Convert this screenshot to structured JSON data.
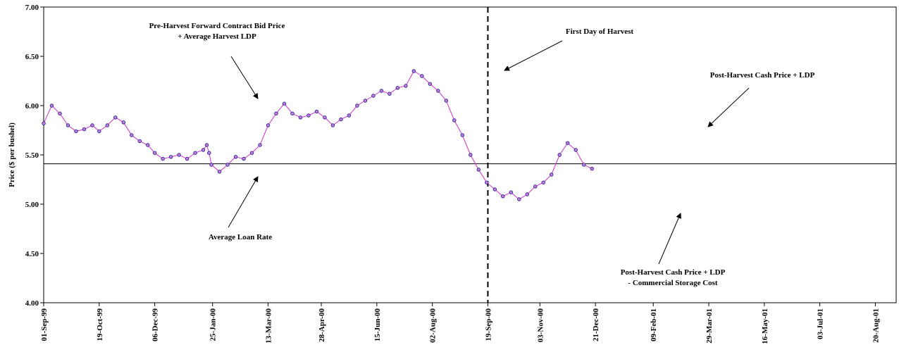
{
  "chart_data": {
    "type": "line",
    "ylabel": "Price ($ per bushel)",
    "ylim": [
      4.0,
      7.0
    ],
    "yticks": [
      "4.00",
      "4.50",
      "5.00",
      "5.50",
      "6.00",
      "6.50",
      "7.00"
    ],
    "xlim": [
      "1999-09-01",
      "2001-09-07"
    ],
    "xtick_labels": [
      "01-Sep-99",
      "19-Oct-99",
      "06-Dec-99",
      "25-Jan-00",
      "13-Mar-00",
      "28-Apr-00",
      "15-Jun-00",
      "02-Aug-00",
      "19-Sep-00",
      "03-Nov-00",
      "21-Dec-00",
      "09-Feb-01",
      "29-Mar-01",
      "16-May-01",
      "03-Jul-01",
      "20-Aug-01"
    ],
    "xtick_dates": [
      "1999-09-01",
      "1999-10-19",
      "1999-12-06",
      "2000-01-25",
      "2000-03-13",
      "2000-04-28",
      "2000-06-15",
      "2000-08-02",
      "2000-09-19",
      "2000-11-03",
      "2000-12-21",
      "2001-02-09",
      "2001-03-29",
      "2001-05-16",
      "2001-07-03",
      "2001-08-20"
    ],
    "grid": false,
    "reference_lines": [
      {
        "orientation": "horizontal",
        "value": 5.41,
        "style": "solid",
        "color": "#000000"
      },
      {
        "orientation": "vertical",
        "date": "2000-09-19",
        "style": "dashed",
        "color": "#000000"
      }
    ],
    "series": [
      {
        "marker": "circle",
        "color": "#c07ce0",
        "marker_edge": "#1a1a80",
        "line_color": "#cc33cc",
        "points": [
          [
            "1999-09-01",
            5.82
          ],
          [
            "1999-09-08",
            6.0
          ],
          [
            "1999-09-15",
            5.92
          ],
          [
            "1999-09-22",
            5.8
          ],
          [
            "1999-09-29",
            5.74
          ],
          [
            "1999-10-06",
            5.76
          ],
          [
            "1999-10-13",
            5.8
          ],
          [
            "1999-10-19",
            5.74
          ],
          [
            "1999-10-26",
            5.8
          ],
          [
            "1999-11-02",
            5.88
          ],
          [
            "1999-11-09",
            5.83
          ],
          [
            "1999-11-16",
            5.7
          ],
          [
            "1999-11-23",
            5.64
          ],
          [
            "1999-11-30",
            5.6
          ],
          [
            "1999-12-06",
            5.52
          ],
          [
            "1999-12-13",
            5.46
          ],
          [
            "1999-12-20",
            5.48
          ],
          [
            "1999-12-27",
            5.5
          ],
          [
            "2000-01-03",
            5.46
          ],
          [
            "2000-01-10",
            5.52
          ],
          [
            "2000-01-17",
            5.55
          ],
          [
            "2000-01-20",
            5.6
          ],
          [
            "2000-01-22",
            5.52
          ],
          [
            "2000-01-24",
            5.4
          ],
          [
            "2000-01-31",
            5.33
          ],
          [
            "2000-02-07",
            5.4
          ],
          [
            "2000-02-14",
            5.48
          ],
          [
            "2000-02-21",
            5.46
          ],
          [
            "2000-02-28",
            5.52
          ],
          [
            "2000-03-06",
            5.6
          ],
          [
            "2000-03-13",
            5.8
          ],
          [
            "2000-03-20",
            5.92
          ],
          [
            "2000-03-27",
            6.02
          ],
          [
            "2000-04-03",
            5.92
          ],
          [
            "2000-04-10",
            5.88
          ],
          [
            "2000-04-17",
            5.9
          ],
          [
            "2000-04-24",
            5.94
          ],
          [
            "2000-05-01",
            5.88
          ],
          [
            "2000-05-08",
            5.8
          ],
          [
            "2000-05-15",
            5.86
          ],
          [
            "2000-05-22",
            5.9
          ],
          [
            "2000-05-29",
            6.0
          ],
          [
            "2000-06-05",
            6.05
          ],
          [
            "2000-06-12",
            6.1
          ],
          [
            "2000-06-19",
            6.15
          ],
          [
            "2000-06-26",
            6.12
          ],
          [
            "2000-07-03",
            6.18
          ],
          [
            "2000-07-10",
            6.2
          ],
          [
            "2000-07-17",
            6.35
          ],
          [
            "2000-07-24",
            6.3
          ],
          [
            "2000-07-31",
            6.22
          ],
          [
            "2000-08-07",
            6.15
          ],
          [
            "2000-08-14",
            6.05
          ],
          [
            "2000-08-21",
            5.85
          ],
          [
            "2000-08-28",
            5.7
          ],
          [
            "2000-09-04",
            5.5
          ],
          [
            "2000-09-11",
            5.35
          ],
          [
            "2000-09-18",
            5.22
          ],
          [
            "2000-09-25",
            5.15
          ],
          [
            "2000-10-02",
            5.08
          ],
          [
            "2000-10-09",
            5.12
          ],
          [
            "2000-10-16",
            5.05
          ],
          [
            "2000-10-23",
            5.1
          ],
          [
            "2000-10-30",
            5.18
          ],
          [
            "2000-11-06",
            5.22
          ],
          [
            "2000-11-13",
            5.3
          ],
          [
            "2000-11-20",
            5.5
          ],
          [
            "2000-11-27",
            5.62
          ],
          [
            "2000-12-04",
            5.55
          ],
          [
            "2000-12-11",
            5.4
          ],
          [
            "2000-12-18",
            5.36
          ]
        ]
      },
      {
        "marker": "circle",
        "color": "#8080ff",
        "marker_edge": "#1a1a80",
        "line_color": "#1a1a80",
        "points": []
      },
      {
        "marker": "none",
        "color": "#ff00ff",
        "points": []
      }
    ]
  },
  "annotations": {
    "pre_harvest_line1": "Pre-Harvest Forward Contract Bid Price",
    "pre_harvest_line2": "+  Average Harvest LDP",
    "first_day": "First Day of Harvest",
    "post_cash": "Post-Harvest Cash Price + LDP",
    "avg_loan": "Average Loan Rate",
    "post_storage_line1": "Post-Harvest Cash Price + LDP",
    "post_storage_line2": "- Commercial Storage Cost"
  }
}
